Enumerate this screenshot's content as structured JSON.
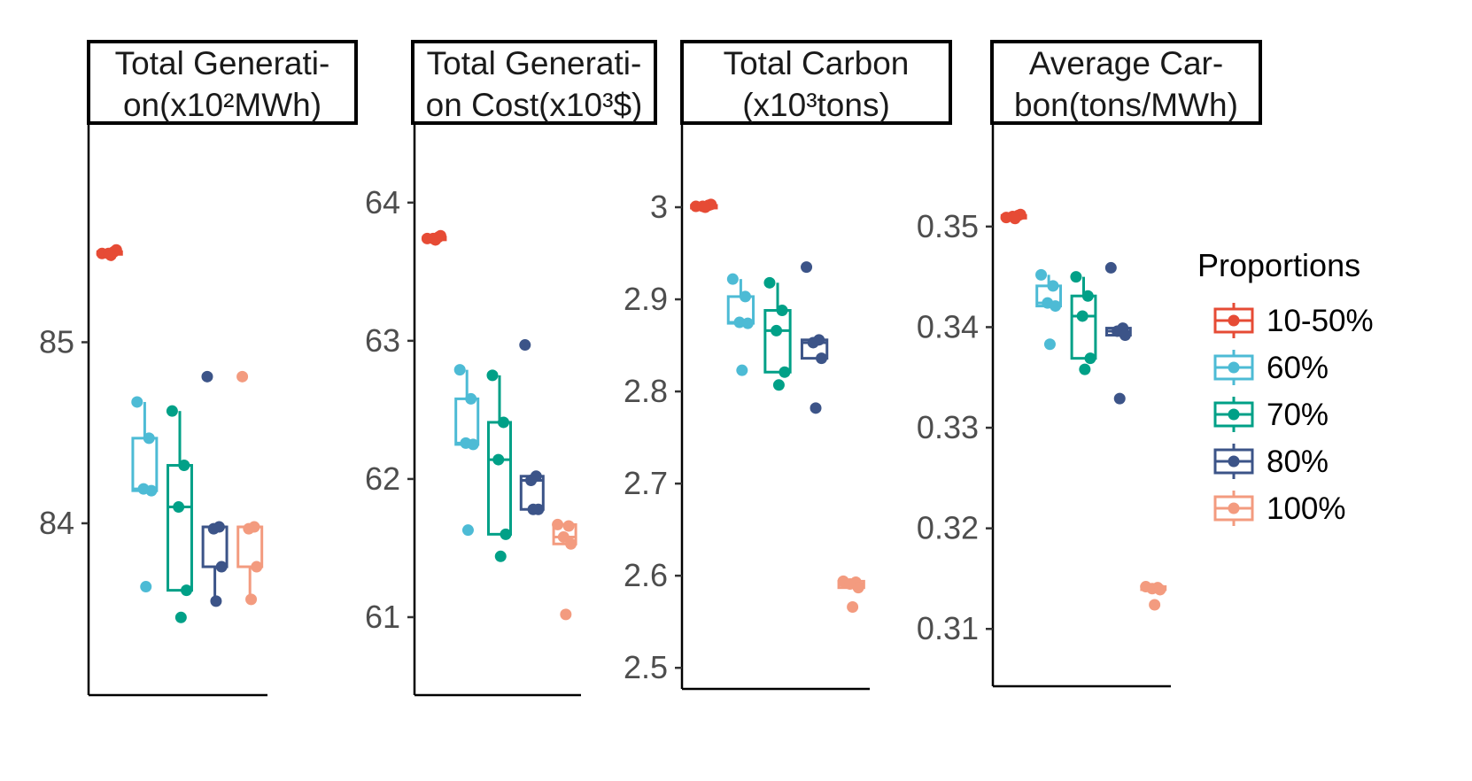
{
  "chart_data": {
    "type": "box",
    "legend": {
      "title": "Proportions",
      "position": "right",
      "entries": [
        {
          "label": "10-50%",
          "color": "#E64B35"
        },
        {
          "label": "60%",
          "color": "#4DBBD5"
        },
        {
          "label": "70%",
          "color": "#00A087"
        },
        {
          "label": "80%",
          "color": "#3C5488"
        },
        {
          "label": "100%",
          "color": "#F39B7F"
        }
      ]
    },
    "panels": [
      {
        "title_lines": [
          "Total Generati-",
          "on(x10²MWh)"
        ],
        "ylim": [
          83.1,
          86.0
        ],
        "yticks": [
          84,
          85
        ],
        "ytick_labels": [
          "84",
          "85"
        ],
        "groups": [
          {
            "name": "10-50%",
            "q1": 85.49,
            "median": 85.495,
            "q3": 85.5,
            "whisker_low": 85.48,
            "whisker_high": 85.51,
            "points": [
              85.49,
              85.5,
              85.49,
              85.51,
              85.48
            ]
          },
          {
            "name": "60%",
            "q1": 84.18,
            "median": 84.19,
            "q3": 84.47,
            "whisker_low": 84.18,
            "whisker_high": 84.67,
            "points": [
              84.67,
              84.47,
              84.19,
              84.18,
              83.65
            ]
          },
          {
            "name": "70%",
            "q1": 83.63,
            "median": 84.09,
            "q3": 84.32,
            "whisker_low": 83.63,
            "whisker_high": 84.62,
            "points": [
              84.62,
              84.32,
              84.09,
              83.63,
              83.48
            ]
          },
          {
            "name": "80%",
            "q1": 83.76,
            "median": 83.98,
            "q3": 83.98,
            "whisker_low": 83.57,
            "whisker_high": 83.98,
            "points": [
              84.81,
              83.98,
              83.97,
              83.76,
              83.57
            ]
          },
          {
            "name": "100%",
            "q1": 83.76,
            "median": 83.98,
            "q3": 83.98,
            "whisker_low": 83.58,
            "whisker_high": 83.98,
            "points": [
              84.81,
              83.98,
              83.97,
              83.76,
              83.58
            ]
          }
        ]
      },
      {
        "title_lines": [
          "Total Generati-",
          "on Cost(x10³$)"
        ],
        "ylim": [
          60.5,
          64.3
        ],
        "yticks": [
          61,
          62,
          63,
          64
        ],
        "ytick_labels": [
          "61",
          "62",
          "63",
          "64"
        ],
        "groups": [
          {
            "name": "10-50%",
            "q1": 63.74,
            "median": 63.745,
            "q3": 63.75,
            "whisker_low": 63.73,
            "whisker_high": 63.76,
            "points": [
              63.74,
              63.75,
              63.74,
              63.76,
              63.73
            ]
          },
          {
            "name": "60%",
            "q1": 62.25,
            "median": 62.26,
            "q3": 62.58,
            "whisker_low": 62.25,
            "whisker_high": 62.79,
            "points": [
              62.79,
              62.58,
              62.26,
              62.25,
              61.63
            ]
          },
          {
            "name": "70%",
            "q1": 61.6,
            "median": 62.14,
            "q3": 62.41,
            "whisker_low": 61.6,
            "whisker_high": 62.75,
            "points": [
              62.75,
              62.41,
              62.14,
              61.6,
              61.44
            ]
          },
          {
            "name": "80%",
            "q1": 61.78,
            "median": 61.99,
            "q3": 62.02,
            "whisker_low": 61.78,
            "whisker_high": 62.02,
            "points": [
              62.97,
              62.02,
              61.99,
              61.78,
              61.78
            ]
          },
          {
            "name": "100%",
            "q1": 61.53,
            "median": 61.58,
            "q3": 61.67,
            "whisker_low": 61.53,
            "whisker_high": 61.67,
            "points": [
              61.67,
              61.66,
              61.58,
              61.53,
              61.02
            ]
          }
        ]
      },
      {
        "title_lines": [
          "Total Carbon",
          "(x10³tons)"
        ],
        "ylim": [
          2.48,
          3.05
        ],
        "yticks": [
          2.5,
          2.6,
          2.7,
          2.8,
          2.9,
          3.0
        ],
        "ytick_labels": [
          "2.5",
          "2.6",
          "2.7",
          "2.8",
          "2.9",
          "3"
        ],
        "groups": [
          {
            "name": "10-50%",
            "q1": 3.001,
            "median": 3.0015,
            "q3": 3.002,
            "whisker_low": 3.0,
            "whisker_high": 3.003,
            "points": [
              3.001,
              3.002,
              3.001,
              3.003,
              3.0
            ]
          },
          {
            "name": "60%",
            "q1": 2.874,
            "median": 2.875,
            "q3": 2.903,
            "whisker_low": 2.874,
            "whisker_high": 2.922,
            "points": [
              2.922,
              2.903,
              2.875,
              2.874,
              2.823
            ]
          },
          {
            "name": "70%",
            "q1": 2.821,
            "median": 2.866,
            "q3": 2.888,
            "whisker_low": 2.821,
            "whisker_high": 2.918,
            "points": [
              2.918,
              2.888,
              2.866,
              2.821,
              2.807
            ]
          },
          {
            "name": "80%",
            "q1": 2.836,
            "median": 2.853,
            "q3": 2.856,
            "whisker_low": 2.836,
            "whisker_high": 2.856,
            "points": [
              2.935,
              2.856,
              2.853,
              2.836,
              2.782
            ]
          },
          {
            "name": "100%",
            "q1": 2.587,
            "median": 2.591,
            "q3": 2.594,
            "whisker_low": 2.587,
            "whisker_high": 2.594,
            "points": [
              2.594,
              2.593,
              2.591,
              2.587,
              2.566
            ]
          }
        ]
      },
      {
        "title_lines": [
          "Average Car-",
          "bon(tons/MWh)"
        ],
        "ylim": [
          0.3043,
          0.3565
        ],
        "yticks": [
          0.31,
          0.32,
          0.33,
          0.34,
          0.35
        ],
        "ytick_labels": [
          "0.31",
          "0.32",
          "0.33",
          "0.34",
          "0.35"
        ],
        "groups": [
          {
            "name": "10-50%",
            "q1": 0.3509,
            "median": 0.351,
            "q3": 0.3511,
            "whisker_low": 0.3508,
            "whisker_high": 0.3512,
            "points": [
              0.3509,
              0.3511,
              0.351,
              0.3512,
              0.3508
            ]
          },
          {
            "name": "60%",
            "q1": 0.3421,
            "median": 0.3424,
            "q3": 0.3441,
            "whisker_low": 0.3421,
            "whisker_high": 0.3452,
            "points": [
              0.3452,
              0.3441,
              0.3424,
              0.3421,
              0.3383
            ]
          },
          {
            "name": "70%",
            "q1": 0.3369,
            "median": 0.3411,
            "q3": 0.3431,
            "whisker_low": 0.3369,
            "whisker_high": 0.345,
            "points": [
              0.345,
              0.3431,
              0.3411,
              0.3369,
              0.3358
            ]
          },
          {
            "name": "80%",
            "q1": 0.3392,
            "median": 0.3396,
            "q3": 0.3399,
            "whisker_low": 0.3392,
            "whisker_high": 0.3399,
            "points": [
              0.3459,
              0.3399,
              0.3396,
              0.3392,
              0.3329
            ]
          },
          {
            "name": "100%",
            "q1": 0.3139,
            "median": 0.3141,
            "q3": 0.3142,
            "whisker_low": 0.3139,
            "whisker_high": 0.3142,
            "points": [
              0.3142,
              0.3141,
              0.314,
              0.3139,
              0.3124
            ]
          }
        ]
      }
    ]
  }
}
